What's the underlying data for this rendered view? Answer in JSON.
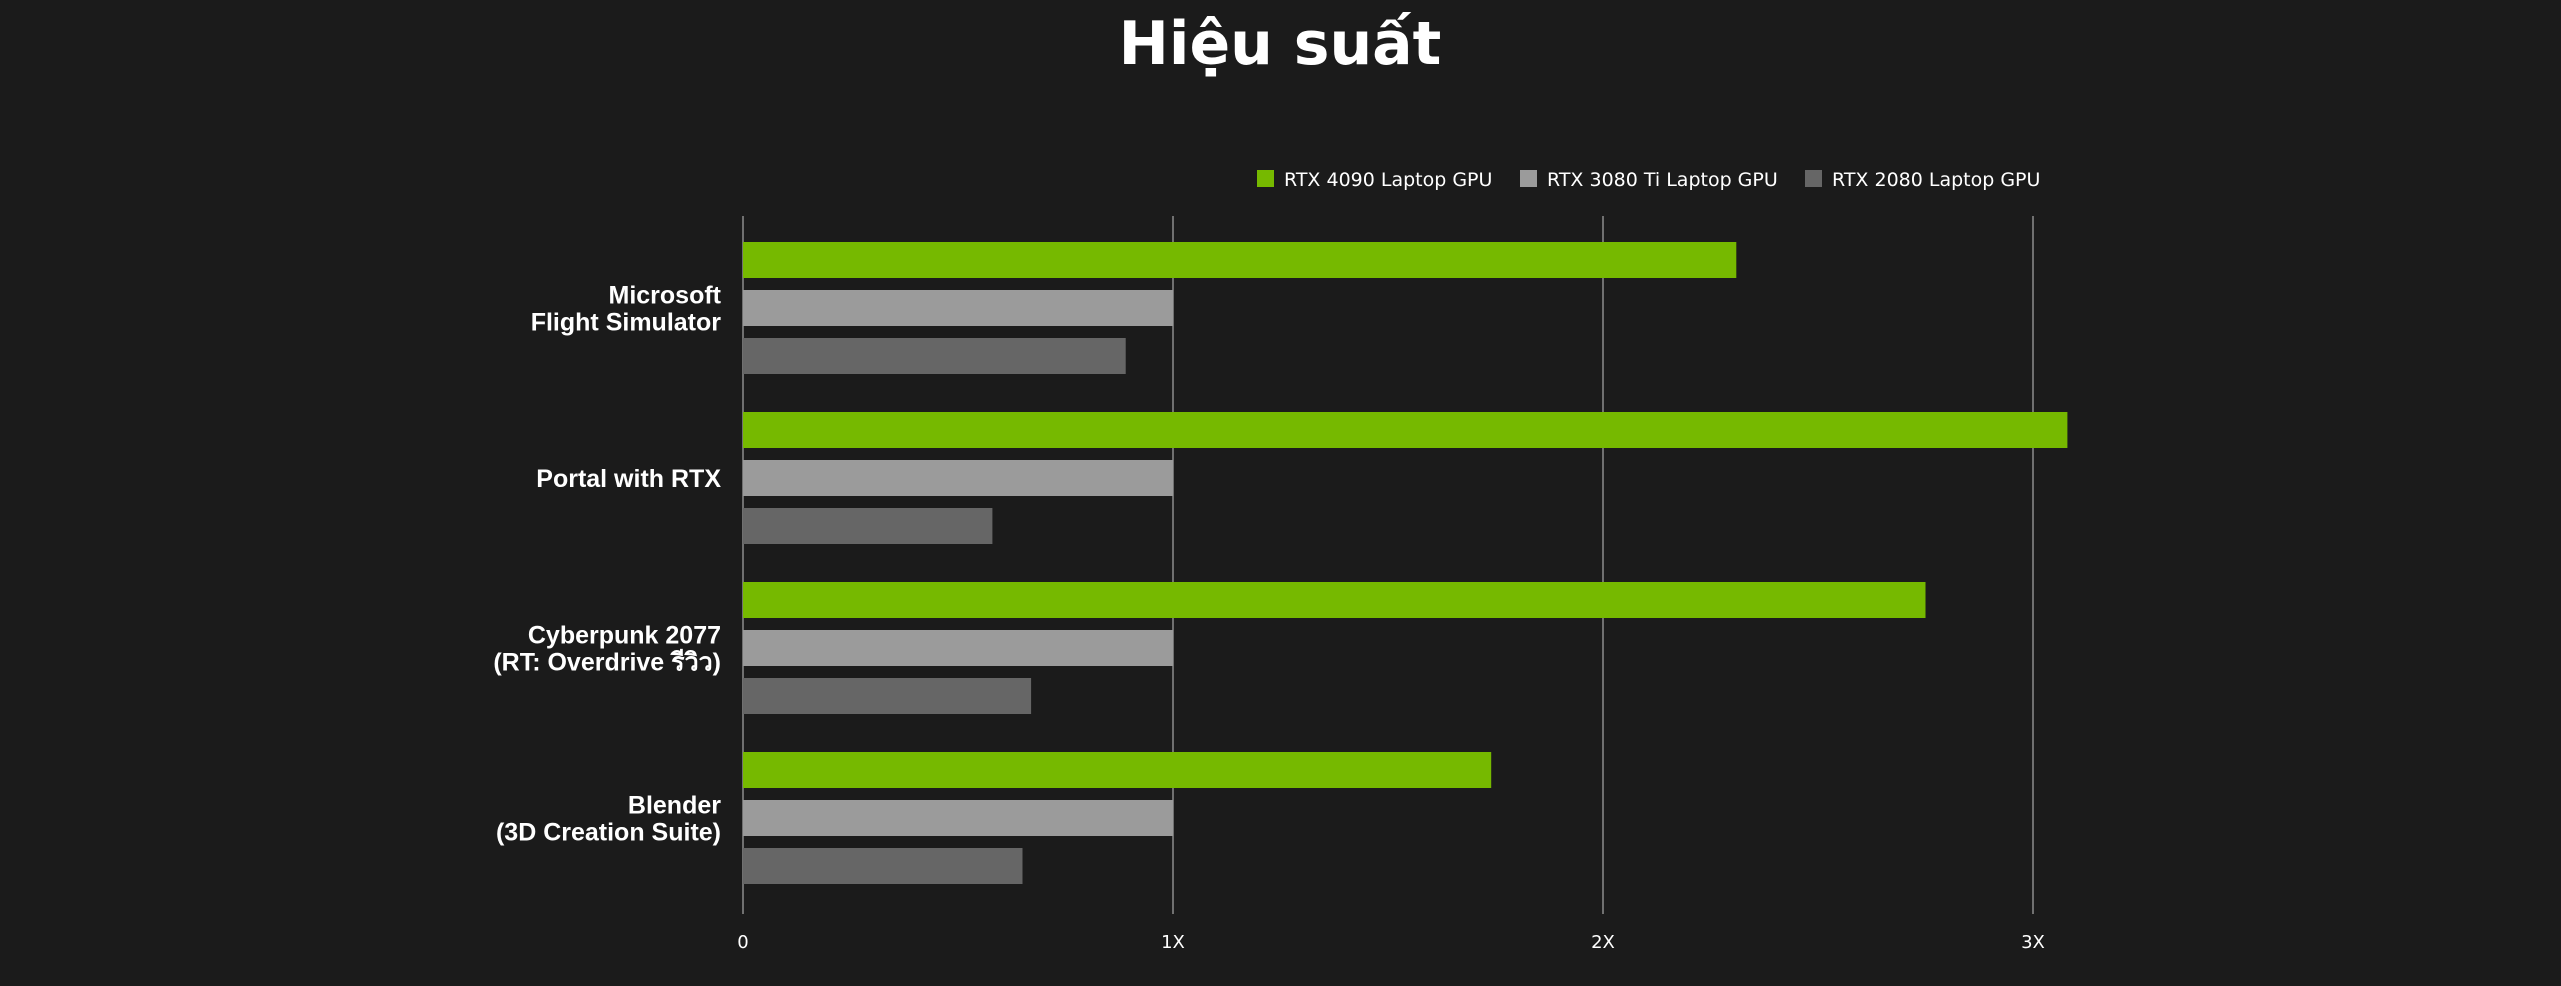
{
  "chart_data": {
    "type": "bar",
    "orientation": "horizontal",
    "title": "Hiệu suất",
    "categories": [
      [
        "Microsoft",
        "Flight Simulator"
      ],
      [
        "Portal with RTX"
      ],
      [
        "Cyberpunk 2077",
        "(RT: Overdrive รีวิว)"
      ],
      [
        "Blender",
        "(3D Creation Suite)"
      ]
    ],
    "series": [
      {
        "name": "RTX 4090 Laptop GPU",
        "color": "#76b900",
        "values": [
          2.31,
          3.08,
          2.75,
          1.74
        ]
      },
      {
        "name": "RTX 3080 Ti Laptop GPU",
        "color": "#9b9b9b",
        "values": [
          1.0,
          1.0,
          1.0,
          1.0
        ]
      },
      {
        "name": "RTX 2080 Laptop GPU",
        "color": "#666666",
        "values": [
          0.89,
          0.58,
          0.67,
          0.65
        ]
      }
    ],
    "x_ticks": [
      {
        "value": 0,
        "label": "0"
      },
      {
        "value": 1,
        "label": "1X"
      },
      {
        "value": 2,
        "label": "2X"
      },
      {
        "value": 3,
        "label": "3X"
      }
    ],
    "xlim": [
      0,
      3
    ],
    "grid": true,
    "legend_position": "top-right"
  }
}
